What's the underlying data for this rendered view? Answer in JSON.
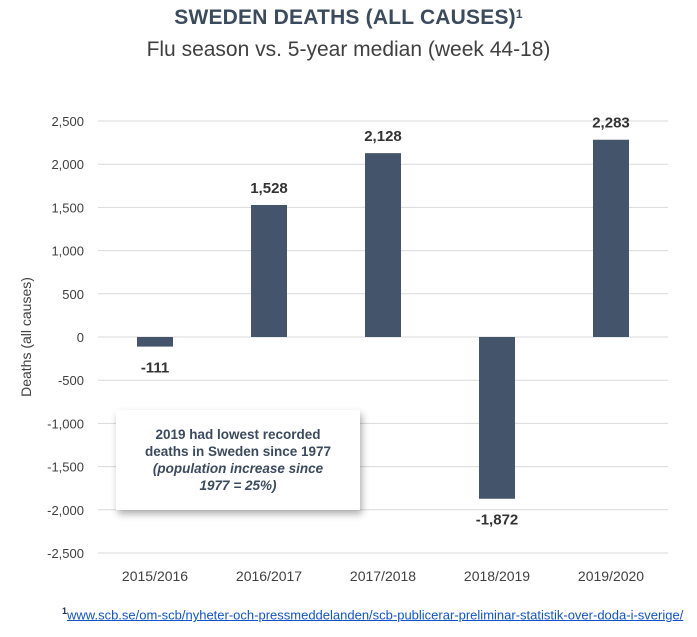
{
  "title": "SWEDEN DEATHS (ALL CAUSES)",
  "title_superscript": "1",
  "subtitle": "Flu season vs. 5-year median (week 44-18)",
  "chart_data": {
    "type": "bar",
    "categories": [
      "2015/2016",
      "2016/2017",
      "2017/2018",
      "2018/2019",
      "2019/2020"
    ],
    "values": [
      -111,
      1528,
      2128,
      -1872,
      2283
    ],
    "value_labels": [
      "-111",
      "1,528",
      "2,128",
      "-1,872",
      "2,283"
    ],
    "ylabel": "Deaths (all causes)",
    "xlabel": "",
    "ylim": [
      -2500,
      2500
    ],
    "yticks": [
      2500,
      2000,
      1500,
      1000,
      500,
      0,
      -500,
      -1000,
      -1500,
      -2000,
      -2500
    ],
    "ytick_labels": [
      "2,500",
      "2,000",
      "1,500",
      "1,000",
      "500",
      "0",
      "-500",
      "-1,000",
      "-1,500",
      "-2,000",
      "-2,500"
    ],
    "grid": true,
    "bar_color": "#44546a"
  },
  "annotation": {
    "line1": "2019 had lowest recorded",
    "line2": "deaths in Sweden since 1977",
    "line3": "(population increase since",
    "line4": "1977 = 25%)"
  },
  "footnote": {
    "marker": "1",
    "link_text": "www.scb.se/om-scb/nyheter-och-pressmeddelanden/scb-publicerar-preliminar-statistik-over-doda-i-sverige/"
  }
}
